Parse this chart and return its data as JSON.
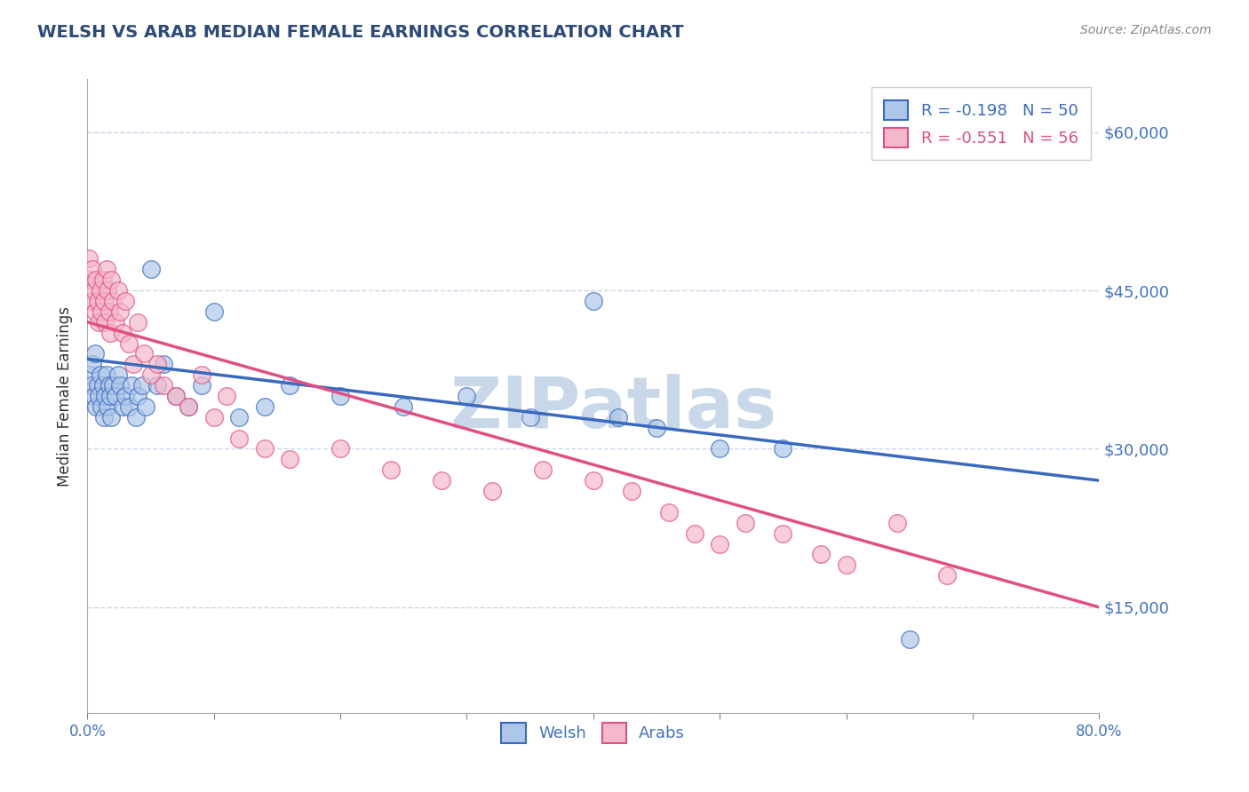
{
  "title": "WELSH VS ARAB MEDIAN FEMALE EARNINGS CORRELATION CHART",
  "source": "Source: ZipAtlas.com",
  "ylabel": "Median Female Earnings",
  "yticks": [
    15000,
    30000,
    45000,
    60000
  ],
  "ytick_labels": [
    "$15,000",
    "$30,000",
    "$45,000",
    "$60,000"
  ],
  "xmin": 0.0,
  "xmax": 0.8,
  "ymin": 5000,
  "ymax": 65000,
  "welsh_R": -0.198,
  "welsh_N": 50,
  "arab_R": -0.551,
  "arab_N": 56,
  "welsh_color": "#aec6e8",
  "arab_color": "#f4b8cb",
  "welsh_line_color": "#3a6abf",
  "arab_line_color": "#e05080",
  "title_color": "#2E4A7A",
  "axis_label_color": "#4472c4",
  "background_color": "#ffffff",
  "grid_color": "#c8d8e8",
  "watermark_text": "ZIPatlas",
  "watermark_color": "#c8d8e8",
  "legend_welsh_label": "Welsh",
  "legend_arab_label": "Arabs",
  "welsh_line_x0": 0.0,
  "welsh_line_y0": 38500,
  "welsh_line_x1": 0.8,
  "welsh_line_y1": 27000,
  "arab_line_x0": 0.0,
  "arab_line_y0": 42000,
  "arab_line_x1": 0.8,
  "arab_line_y1": 15000,
  "welsh_scatter_x": [
    0.002,
    0.003,
    0.004,
    0.005,
    0.006,
    0.007,
    0.008,
    0.009,
    0.01,
    0.011,
    0.012,
    0.013,
    0.014,
    0.015,
    0.016,
    0.017,
    0.018,
    0.019,
    0.02,
    0.022,
    0.024,
    0.026,
    0.028,
    0.03,
    0.033,
    0.035,
    0.038,
    0.04,
    0.043,
    0.046,
    0.05,
    0.055,
    0.06,
    0.07,
    0.08,
    0.09,
    0.1,
    0.12,
    0.14,
    0.16,
    0.2,
    0.25,
    0.3,
    0.35,
    0.4,
    0.42,
    0.45,
    0.5,
    0.55,
    0.65
  ],
  "welsh_scatter_y": [
    37000,
    36000,
    38000,
    35000,
    39000,
    34000,
    36000,
    35000,
    37000,
    34000,
    36000,
    33000,
    35000,
    37000,
    34000,
    36000,
    35000,
    33000,
    36000,
    35000,
    37000,
    36000,
    34000,
    35000,
    34000,
    36000,
    33000,
    35000,
    36000,
    34000,
    47000,
    36000,
    38000,
    35000,
    34000,
    36000,
    43000,
    33000,
    34000,
    36000,
    35000,
    34000,
    35000,
    33000,
    44000,
    33000,
    32000,
    30000,
    30000,
    12000
  ],
  "arab_scatter_x": [
    0.001,
    0.002,
    0.003,
    0.004,
    0.005,
    0.006,
    0.007,
    0.008,
    0.009,
    0.01,
    0.011,
    0.012,
    0.013,
    0.014,
    0.015,
    0.016,
    0.017,
    0.018,
    0.019,
    0.02,
    0.022,
    0.024,
    0.026,
    0.028,
    0.03,
    0.033,
    0.036,
    0.04,
    0.045,
    0.05,
    0.055,
    0.06,
    0.07,
    0.08,
    0.09,
    0.1,
    0.11,
    0.12,
    0.14,
    0.16,
    0.2,
    0.24,
    0.28,
    0.32,
    0.36,
    0.4,
    0.43,
    0.46,
    0.48,
    0.5,
    0.52,
    0.55,
    0.58,
    0.6,
    0.64,
    0.68
  ],
  "arab_scatter_y": [
    48000,
    46000,
    44000,
    47000,
    45000,
    43000,
    46000,
    44000,
    42000,
    45000,
    43000,
    46000,
    44000,
    42000,
    47000,
    45000,
    43000,
    41000,
    46000,
    44000,
    42000,
    45000,
    43000,
    41000,
    44000,
    40000,
    38000,
    42000,
    39000,
    37000,
    38000,
    36000,
    35000,
    34000,
    37000,
    33000,
    35000,
    31000,
    30000,
    29000,
    30000,
    28000,
    27000,
    26000,
    28000,
    27000,
    26000,
    24000,
    22000,
    21000,
    23000,
    22000,
    20000,
    19000,
    23000,
    18000
  ]
}
